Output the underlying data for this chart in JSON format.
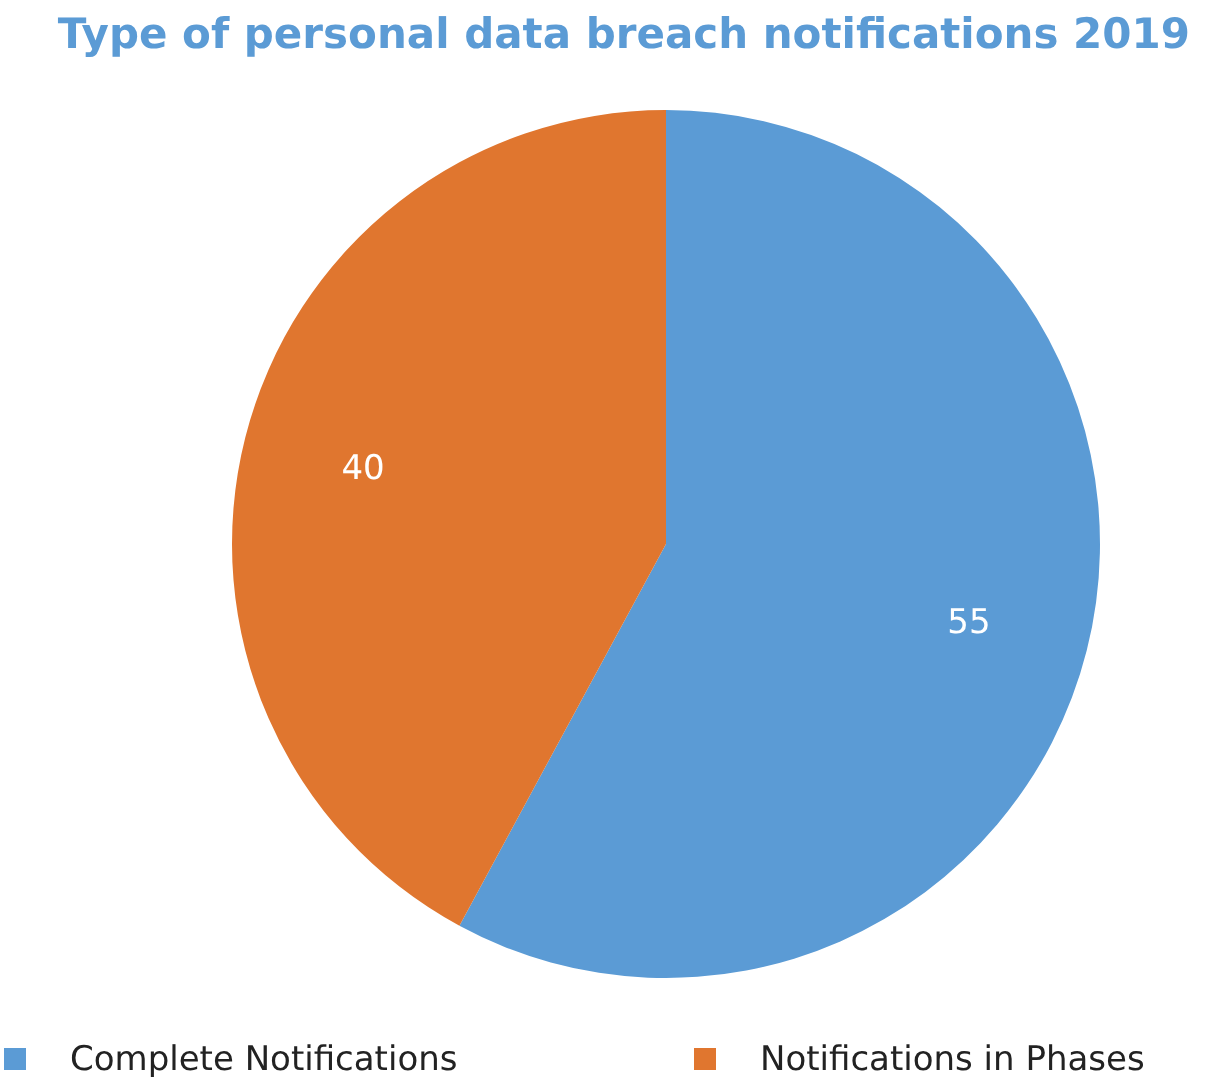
{
  "chart_data": {
    "type": "pie",
    "title": "Type of personal data breach notifications 2019",
    "categories": [
      "Complete Notifications",
      "Notifications in Phases"
    ],
    "values": [
      55,
      40
    ],
    "colors": [
      "#5b9bd5",
      "#e0762f"
    ],
    "data_labels": true,
    "legend": "bottom"
  }
}
